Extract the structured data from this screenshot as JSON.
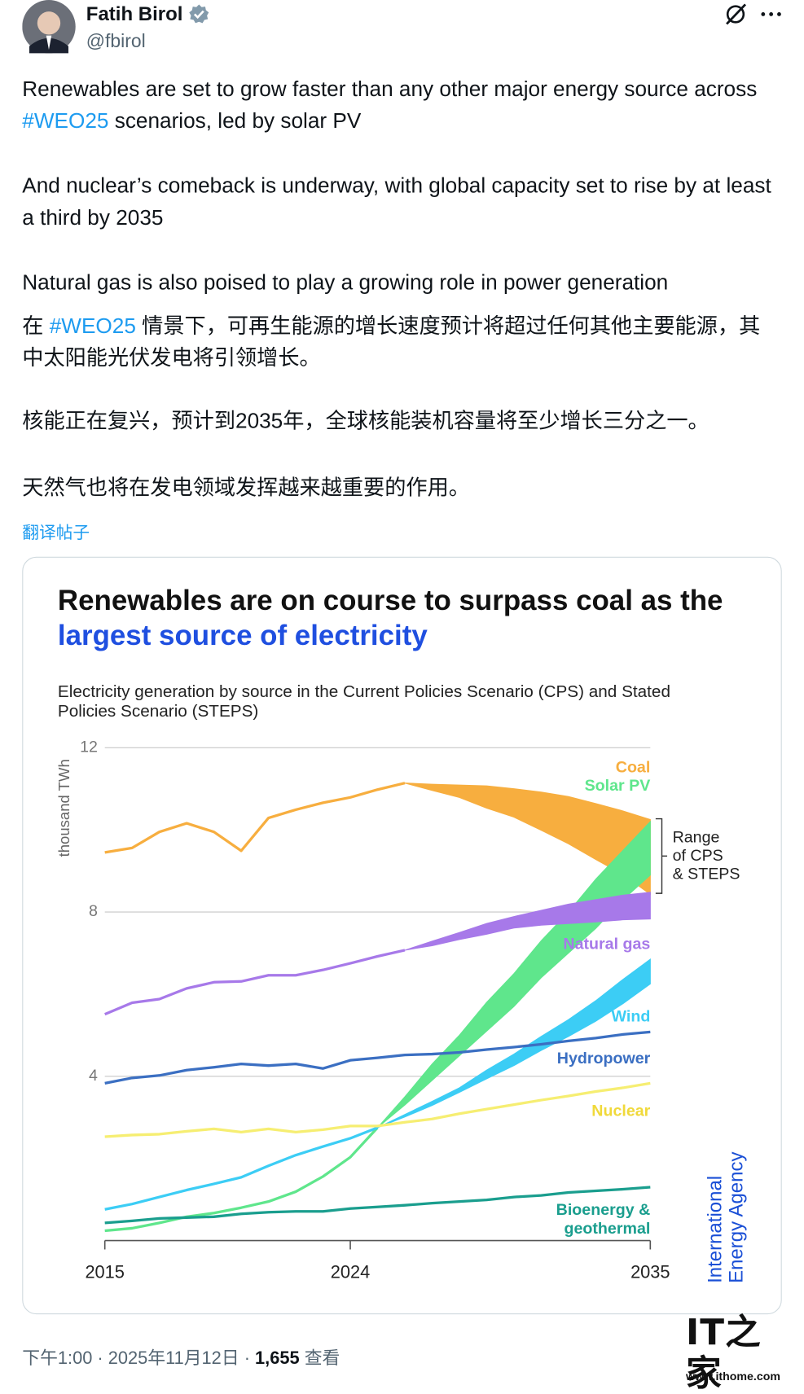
{
  "author": {
    "name": "Fatih Birol",
    "handle": "@fbirol"
  },
  "post": {
    "paragraphs": [
      [
        "Renewables are set to grow faster than any other major energy source across ",
        "#WEO25",
        " scenarios, led by solar PV"
      ],
      [
        "And nuclear’s comeback is underway, with global capacity set to rise by at least a third by 2035"
      ],
      [
        "Natural gas is also poised to play a growing role in power generation"
      ],
      [
        "在 ",
        "#WEO25",
        " 情景下，可再生能源的增长速度预计将超过任何其他主要能源，其中太阳能光伏发电将引领增长。"
      ],
      [
        "核能正在复兴，预计到2035年，全球核能装机容量将至少增长三分之一。"
      ],
      [
        "天然气也将在发电领域发挥越来越重要的作用。"
      ]
    ],
    "translate_link": "翻译帖子"
  },
  "chart_data": {
    "type": "line",
    "title": "Renewables are on course to surpass coal as the",
    "title_highlight": "largest source of electricity",
    "subtitle": "Electricity generation by source in the Current Policies Scenario (CPS) and Stated Policies Scenario (STEPS)",
    "y_label": "thousand TWh",
    "x": [
      2015,
      2016,
      2017,
      2018,
      2019,
      2020,
      2021,
      2022,
      2023,
      2024,
      2025,
      2026,
      2027,
      2028,
      2029,
      2030,
      2031,
      2032,
      2033,
      2034,
      2035
    ],
    "xlim": [
      2015,
      2035
    ],
    "xticks": [
      2015,
      2024,
      2035
    ],
    "ylim": [
      0,
      12
    ],
    "yticks": [
      4,
      8,
      12
    ],
    "grid": true,
    "series": [
      {
        "name": "Coal",
        "color": "#f7ae3f",
        "values": [
          9.45,
          9.56,
          9.95,
          10.16,
          9.95,
          9.49,
          10.29,
          10.49,
          10.66,
          10.79,
          10.98,
          11.14,
          null,
          null,
          null,
          null,
          null,
          null,
          null,
          null,
          null
        ],
        "band_low": [
          null,
          null,
          null,
          null,
          null,
          null,
          null,
          null,
          null,
          null,
          null,
          11.14,
          10.96,
          10.79,
          10.53,
          10.31,
          9.99,
          9.66,
          9.28,
          8.91,
          8.43
        ],
        "band_high": [
          null,
          null,
          null,
          null,
          null,
          null,
          null,
          null,
          null,
          null,
          null,
          11.14,
          11.11,
          11.09,
          11.07,
          11.0,
          10.92,
          10.81,
          10.64,
          10.46,
          10.25
        ]
      },
      {
        "name": "Solar PV",
        "color": "#5fe68c",
        "values": [
          0.24,
          0.3,
          0.43,
          0.58,
          0.67,
          0.8,
          0.95,
          1.19,
          1.56,
          2.03,
          2.75,
          null,
          null,
          null,
          null,
          null,
          null,
          null,
          null,
          null,
          null
        ],
        "band_low": [
          null,
          null,
          null,
          null,
          null,
          null,
          null,
          null,
          null,
          null,
          2.75,
          3.3,
          3.9,
          4.5,
          5.1,
          5.7,
          6.4,
          7.0,
          7.6,
          8.3,
          8.9
        ],
        "band_high": [
          null,
          null,
          null,
          null,
          null,
          null,
          null,
          null,
          null,
          null,
          2.75,
          3.5,
          4.3,
          5.0,
          5.8,
          6.5,
          7.3,
          8.0,
          8.8,
          9.5,
          10.2
        ]
      },
      {
        "name": "Natural gas",
        "color": "#a779e9",
        "values": [
          5.51,
          5.79,
          5.88,
          6.14,
          6.29,
          6.31,
          6.46,
          6.46,
          6.59,
          6.75,
          6.92,
          7.07,
          null,
          null,
          null,
          null,
          null,
          null,
          null,
          null,
          null
        ],
        "band_low": [
          null,
          null,
          null,
          null,
          null,
          null,
          null,
          null,
          null,
          null,
          null,
          7.07,
          7.18,
          7.33,
          7.46,
          7.61,
          7.68,
          7.72,
          7.76,
          7.81,
          7.83
        ],
        "band_high": [
          null,
          null,
          null,
          null,
          null,
          null,
          null,
          null,
          null,
          null,
          null,
          7.07,
          7.29,
          7.5,
          7.72,
          7.89,
          8.04,
          8.19,
          8.3,
          8.41,
          8.48
        ]
      },
      {
        "name": "Wind",
        "color": "#3ccdf5",
        "values": [
          0.76,
          0.89,
          1.06,
          1.23,
          1.38,
          1.54,
          1.82,
          2.08,
          2.29,
          2.49,
          2.75,
          null,
          null,
          null,
          null,
          null,
          null,
          null,
          null,
          null,
          null
        ],
        "band_low": [
          null,
          null,
          null,
          null,
          null,
          null,
          null,
          null,
          null,
          null,
          2.75,
          3.01,
          3.29,
          3.61,
          3.94,
          4.26,
          4.63,
          4.97,
          5.34,
          5.77,
          6.25
        ],
        "band_high": [
          null,
          null,
          null,
          null,
          null,
          null,
          null,
          null,
          null,
          null,
          2.75,
          3.07,
          3.39,
          3.72,
          4.15,
          4.54,
          4.97,
          5.38,
          5.84,
          6.36,
          6.85
        ]
      },
      {
        "name": "Hydropower",
        "color": "#3b6fc2",
        "values": [
          3.83,
          3.96,
          4.02,
          4.15,
          4.22,
          4.3,
          4.26,
          4.3,
          4.19,
          4.39,
          4.45,
          4.52,
          4.54,
          4.58,
          4.65,
          4.71,
          4.78,
          4.86,
          4.93,
          5.02,
          5.08
        ]
      },
      {
        "name": "Nuclear",
        "color": "#f6ee72",
        "values": [
          2.53,
          2.57,
          2.59,
          2.66,
          2.72,
          2.64,
          2.72,
          2.64,
          2.7,
          2.79,
          2.79,
          2.88,
          2.96,
          3.09,
          3.2,
          3.31,
          3.42,
          3.52,
          3.63,
          3.72,
          3.83
        ]
      },
      {
        "name": "Bioenergy & geothermal",
        "color": "#1a9e8e",
        "values": [
          0.43,
          0.48,
          0.54,
          0.56,
          0.58,
          0.65,
          0.69,
          0.71,
          0.71,
          0.78,
          0.82,
          0.86,
          0.91,
          0.95,
          0.99,
          1.06,
          1.1,
          1.17,
          1.21,
          1.25,
          1.3
        ]
      }
    ],
    "annotation_lines": [
      "Range",
      "of CPS",
      "& STEPS"
    ],
    "source_logo": "International Energy Agency"
  },
  "footer": {
    "time": "下午1:00",
    "separator": "·",
    "date": "2025年11月12日",
    "views": "1,655",
    "views_label": "查看"
  },
  "watermark": {
    "logo": "IT之家",
    "url": "www.ithome.com"
  }
}
